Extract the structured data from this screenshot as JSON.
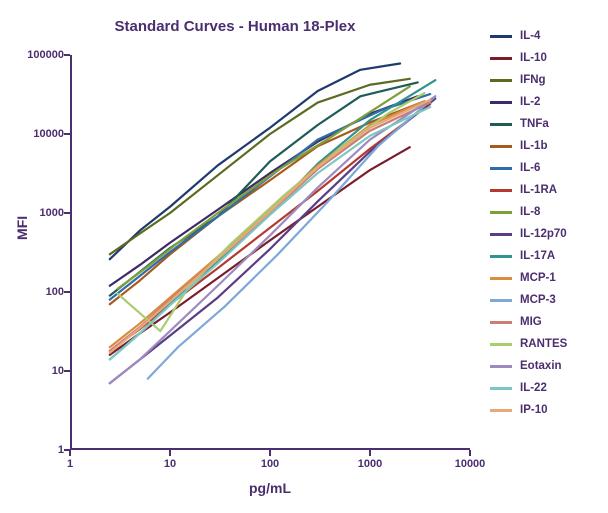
{
  "chart": {
    "type": "line-log-log",
    "title": "Standard Curves - Human 18-Plex",
    "title_fontsize": 15,
    "title_color": "#4b2e6f",
    "xlabel": "pg/mL",
    "ylabel": "MFI",
    "label_fontsize": 14,
    "label_color": "#4b2e6f",
    "axis_color": "#4b2e6f",
    "background_color": "#ffffff",
    "x_log_min": 0,
    "x_log_max": 4,
    "y_log_min": 0,
    "y_log_max": 5,
    "xticks": [
      {
        "log": 0,
        "label": "1"
      },
      {
        "log": 1,
        "label": "10"
      },
      {
        "log": 2,
        "label": "100"
      },
      {
        "log": 3,
        "label": "1000"
      },
      {
        "log": 4,
        "label": "10000"
      }
    ],
    "yticks": [
      {
        "log": 0,
        "label": "1"
      },
      {
        "log": 1,
        "label": "10"
      },
      {
        "log": 2,
        "label": "100"
      },
      {
        "log": 3,
        "label": "1000"
      },
      {
        "log": 4,
        "label": "10000"
      },
      {
        "log": 5,
        "label": "100000"
      }
    ],
    "line_width": 2.2,
    "series": [
      {
        "name": "IL-4",
        "color": "#1f3a6e",
        "xy": [
          [
            2.5,
            260
          ],
          [
            5,
            600
          ],
          [
            10,
            1200
          ],
          [
            30,
            4000
          ],
          [
            100,
            12000
          ],
          [
            300,
            35000
          ],
          [
            800,
            65000
          ],
          [
            2000,
            78000
          ]
        ]
      },
      {
        "name": "IL-10",
        "color": "#7a1d2b",
        "xy": [
          [
            2.5,
            16
          ],
          [
            5,
            30
          ],
          [
            10,
            55
          ],
          [
            30,
            150
          ],
          [
            100,
            450
          ],
          [
            300,
            1200
          ],
          [
            1000,
            3500
          ],
          [
            2500,
            6800
          ]
        ]
      },
      {
        "name": "IFNg",
        "color": "#5b6b1f",
        "xy": [
          [
            2.5,
            300
          ],
          [
            5,
            550
          ],
          [
            10,
            1000
          ],
          [
            30,
            3000
          ],
          [
            100,
            10000
          ],
          [
            300,
            25000
          ],
          [
            1000,
            42000
          ],
          [
            2500,
            50000
          ]
        ]
      },
      {
        "name": "IL-2",
        "color": "#3d2a66",
        "xy": [
          [
            2.5,
            120
          ],
          [
            5,
            220
          ],
          [
            10,
            420
          ],
          [
            30,
            1100
          ],
          [
            100,
            3200
          ],
          [
            300,
            8000
          ],
          [
            1000,
            18000
          ],
          [
            3000,
            30000
          ]
        ]
      },
      {
        "name": "TNFa",
        "color": "#1f5b57",
        "xy": [
          [
            2.5,
            90
          ],
          [
            5,
            180
          ],
          [
            10,
            360
          ],
          [
            30,
            900
          ],
          [
            100,
            4500
          ],
          [
            300,
            13000
          ],
          [
            800,
            30000
          ],
          [
            3000,
            45000
          ]
        ]
      },
      {
        "name": "IL-1b",
        "color": "#a65a1f",
        "xy": [
          [
            2.5,
            70
          ],
          [
            5,
            140
          ],
          [
            10,
            300
          ],
          [
            30,
            900
          ],
          [
            100,
            2600
          ],
          [
            300,
            7000
          ],
          [
            1000,
            14000
          ],
          [
            3500,
            26000
          ]
        ]
      },
      {
        "name": "IL-6",
        "color": "#2e6ea8",
        "xy": [
          [
            2.5,
            80
          ],
          [
            5,
            160
          ],
          [
            10,
            320
          ],
          [
            30,
            900
          ],
          [
            100,
            2900
          ],
          [
            300,
            8500
          ],
          [
            1300,
            20000
          ],
          [
            4000,
            32000
          ]
        ]
      },
      {
        "name": "IL-1RA",
        "color": "#b43a2f",
        "xy": [
          [
            2.5,
            18
          ],
          [
            5,
            34
          ],
          [
            10,
            70
          ],
          [
            30,
            200
          ],
          [
            100,
            650
          ],
          [
            300,
            1900
          ],
          [
            1000,
            6500
          ],
          [
            4000,
            24000
          ]
        ]
      },
      {
        "name": "IL-8",
        "color": "#7da03a",
        "xy": [
          [
            3,
            110
          ],
          [
            6,
            210
          ],
          [
            12,
            420
          ],
          [
            35,
            1150
          ],
          [
            120,
            3500
          ],
          [
            400,
            9000
          ],
          [
            1200,
            22000
          ],
          [
            2500,
            40000
          ]
        ]
      },
      {
        "name": "IL-12p70",
        "color": "#5a3e85",
        "xy": [
          [
            2.5,
            7
          ],
          [
            5,
            14
          ],
          [
            10,
            28
          ],
          [
            30,
            85
          ],
          [
            100,
            350
          ],
          [
            300,
            1400
          ],
          [
            1000,
            6000
          ],
          [
            4500,
            28000
          ]
        ]
      },
      {
        "name": "IL-17A",
        "color": "#2f9390",
        "xy": [
          [
            2.5,
            14
          ],
          [
            5,
            30
          ],
          [
            10,
            70
          ],
          [
            30,
            240
          ],
          [
            100,
            1000
          ],
          [
            300,
            4200
          ],
          [
            1000,
            15000
          ],
          [
            4500,
            48000
          ]
        ]
      },
      {
        "name": "MCP-1",
        "color": "#d98b3f",
        "xy": [
          [
            2.5,
            20
          ],
          [
            5,
            40
          ],
          [
            10,
            85
          ],
          [
            30,
            280
          ],
          [
            100,
            1100
          ],
          [
            300,
            4000
          ],
          [
            1000,
            13000
          ],
          [
            3500,
            26000
          ]
        ]
      },
      {
        "name": "MCP-3",
        "color": "#7ea8d6",
        "xy": [
          [
            6,
            8
          ],
          [
            12,
            20
          ],
          [
            35,
            65
          ],
          [
            120,
            300
          ],
          [
            400,
            1500
          ],
          [
            1200,
            7000
          ],
          [
            4500,
            30000
          ]
        ]
      },
      {
        "name": "MIG",
        "color": "#c97d75",
        "xy": [
          [
            2.5,
            18
          ],
          [
            5,
            36
          ],
          [
            10,
            80
          ],
          [
            30,
            260
          ],
          [
            100,
            1000
          ],
          [
            300,
            3600
          ],
          [
            1000,
            11000
          ],
          [
            4000,
            25000
          ]
        ]
      },
      {
        "name": "RANTES",
        "color": "#aacb6e",
        "xy": [
          [
            3,
            95
          ],
          [
            8,
            32
          ],
          [
            15,
            110
          ],
          [
            40,
            400
          ],
          [
            140,
            1700
          ],
          [
            500,
            6500
          ],
          [
            1500,
            18000
          ],
          [
            3500,
            33000
          ]
        ]
      },
      {
        "name": "Eotaxin",
        "color": "#9e8abf",
        "xy": [
          [
            2.5,
            7
          ],
          [
            5,
            14
          ],
          [
            10,
            32
          ],
          [
            30,
            120
          ],
          [
            100,
            520
          ],
          [
            300,
            2100
          ],
          [
            1000,
            8500
          ],
          [
            4500,
            30000
          ]
        ]
      },
      {
        "name": "IL-22",
        "color": "#7cc7c4",
        "xy": [
          [
            2.5,
            14
          ],
          [
            5,
            30
          ],
          [
            10,
            68
          ],
          [
            30,
            230
          ],
          [
            100,
            950
          ],
          [
            300,
            3200
          ],
          [
            1000,
            9500
          ],
          [
            4000,
            22000
          ]
        ]
      },
      {
        "name": "IP-10",
        "color": "#e7a97a",
        "xy": [
          [
            2.5,
            17
          ],
          [
            5,
            35
          ],
          [
            10,
            76
          ],
          [
            30,
            260
          ],
          [
            100,
            1050
          ],
          [
            300,
            3800
          ],
          [
            1000,
            12000
          ],
          [
            4000,
            27000
          ]
        ]
      }
    ]
  }
}
